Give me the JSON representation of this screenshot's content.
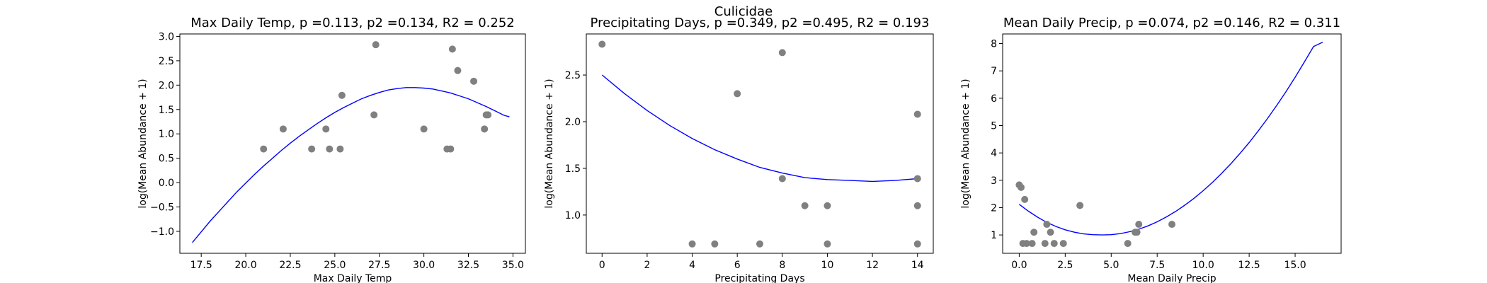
{
  "figure": {
    "suptitle": "Culicidae"
  },
  "colors": {
    "points": "#808080",
    "fit": "#0000ff",
    "axes": "#000000"
  },
  "chart_data": [
    {
      "type": "scatter",
      "title": "Max Daily Temp, p =0.113, p2 =0.134, R2 = 0.252",
      "xlabel": "Max Daily Temp",
      "ylabel": "log(Mean Abundance + 1)",
      "xlim": [
        16.3,
        35.7
      ],
      "ylim": [
        -1.45,
        3.05
      ],
      "xticks": [
        17.5,
        20.0,
        22.5,
        25.0,
        27.5,
        30.0,
        32.5,
        35.0
      ],
      "xtick_labels": [
        "17.5",
        "20.0",
        "22.5",
        "25.0",
        "27.5",
        "30.0",
        "32.5",
        "35.0"
      ],
      "yticks": [
        -1.0,
        -0.5,
        0.0,
        0.5,
        1.0,
        1.5,
        2.0,
        2.5,
        3.0
      ],
      "ytick_labels": [
        "−1.0",
        "−0.5",
        "0.0",
        "0.5",
        "1.0",
        "1.5",
        "2.0",
        "2.5",
        "3.0"
      ],
      "points": {
        "x": [
          21.0,
          22.1,
          23.7,
          24.5,
          24.7,
          25.3,
          25.4,
          27.2,
          27.3,
          30.0,
          31.3,
          31.5,
          31.6,
          31.9,
          32.8,
          33.4,
          33.5,
          33.6
        ],
        "y": [
          0.69,
          1.1,
          0.69,
          1.1,
          0.69,
          0.69,
          1.79,
          1.39,
          2.83,
          1.1,
          0.69,
          0.69,
          2.74,
          2.3,
          2.08,
          1.1,
          1.39,
          1.39
        ]
      },
      "fit": {
        "x": [
          17.0,
          17.5,
          18.0,
          18.5,
          19.0,
          19.5,
          20.0,
          20.5,
          21.0,
          21.5,
          22.0,
          22.5,
          23.0,
          23.5,
          24.0,
          24.5,
          25.0,
          25.5,
          26.0,
          26.5,
          27.0,
          27.5,
          28.0,
          28.5,
          29.0,
          29.5,
          30.0,
          30.5,
          31.0,
          31.5,
          32.0,
          32.5,
          33.0,
          33.5,
          34.0,
          34.5,
          34.8
        ],
        "y": [
          -1.23,
          -1.01,
          -0.79,
          -0.59,
          -0.39,
          -0.19,
          -0.01,
          0.17,
          0.34,
          0.5,
          0.66,
          0.81,
          0.95,
          1.08,
          1.21,
          1.33,
          1.44,
          1.54,
          1.63,
          1.72,
          1.79,
          1.85,
          1.9,
          1.93,
          1.95,
          1.95,
          1.94,
          1.92,
          1.88,
          1.84,
          1.78,
          1.72,
          1.64,
          1.56,
          1.47,
          1.38,
          1.35
        ]
      }
    },
    {
      "type": "scatter",
      "title": "Precipitating Days, p =0.349, p2 =0.495, R2 = 0.193",
      "xlabel": "Precipitating Days",
      "ylabel": "log(Mean Abundance + 1)",
      "xlim": [
        -0.7,
        14.7
      ],
      "ylim": [
        0.59,
        2.94
      ],
      "xticks": [
        0,
        2,
        4,
        6,
        8,
        10,
        12,
        14
      ],
      "xtick_labels": [
        "0",
        "2",
        "4",
        "6",
        "8",
        "10",
        "12",
        "14"
      ],
      "yticks": [
        1.0,
        1.5,
        2.0,
        2.5
      ],
      "ytick_labels": [
        "1.0",
        "1.5",
        "2.0",
        "2.5"
      ],
      "points": {
        "x": [
          0,
          4,
          5,
          6,
          7,
          8,
          8,
          9,
          10,
          10,
          14,
          14,
          14,
          14
        ],
        "y": [
          2.83,
          0.69,
          0.69,
          2.3,
          0.69,
          2.74,
          1.39,
          1.1,
          1.1,
          0.69,
          2.08,
          1.39,
          1.1,
          0.69
        ]
      },
      "fit": {
        "x": [
          0,
          1,
          2,
          3,
          4,
          5,
          6,
          7,
          8,
          9,
          10,
          11,
          12,
          13,
          14
        ],
        "y": [
          2.5,
          2.3,
          2.12,
          1.96,
          1.82,
          1.7,
          1.6,
          1.51,
          1.45,
          1.4,
          1.38,
          1.37,
          1.36,
          1.37,
          1.39
        ]
      }
    },
    {
      "type": "scatter",
      "title": "Mean Daily Precip, p =0.074, p2 =0.146, R2 = 0.311",
      "xlabel": "Mean Daily Precip",
      "ylabel": "log(Mean Abundance + 1)",
      "xlim": [
        -0.9,
        17.5
      ],
      "ylim": [
        0.33,
        8.35
      ],
      "xticks": [
        0.0,
        2.5,
        5.0,
        7.5,
        10.0,
        12.5,
        15.0
      ],
      "xtick_labels": [
        "0.0",
        "2.5",
        "5.0",
        "7.5",
        "10.0",
        "12.5",
        "15.0"
      ],
      "yticks": [
        1,
        2,
        3,
        4,
        5,
        6,
        7,
        8
      ],
      "ytick_labels": [
        "1",
        "2",
        "3",
        "4",
        "5",
        "6",
        "7",
        "8"
      ],
      "points": {
        "x": [
          0.0,
          0.1,
          0.2,
          0.3,
          0.4,
          0.7,
          0.8,
          1.4,
          1.5,
          1.7,
          1.9,
          2.4,
          3.3,
          5.9,
          6.3,
          6.4,
          6.5,
          8.3
        ],
        "y": [
          2.83,
          2.74,
          0.69,
          2.3,
          0.69,
          0.69,
          1.1,
          0.69,
          1.39,
          1.1,
          0.69,
          0.69,
          2.08,
          0.69,
          1.1,
          1.1,
          1.39,
          1.39
        ]
      },
      "fit": {
        "x": [
          0.0,
          0.5,
          1.0,
          1.5,
          2.0,
          2.5,
          3.0,
          3.5,
          4.0,
          4.5,
          5.0,
          5.5,
          6.0,
          6.5,
          7.0,
          7.5,
          8.0,
          8.5,
          9.0,
          9.5,
          10.0,
          10.5,
          11.0,
          11.5,
          12.0,
          12.5,
          13.0,
          13.5,
          14.0,
          14.5,
          15.0,
          15.5,
          16.0,
          16.5
        ],
        "y": [
          2.12,
          1.87,
          1.65,
          1.46,
          1.31,
          1.19,
          1.1,
          1.04,
          1.01,
          1.0,
          1.01,
          1.05,
          1.12,
          1.21,
          1.33,
          1.48,
          1.66,
          1.86,
          2.09,
          2.34,
          2.62,
          2.92,
          3.25,
          3.6,
          3.98,
          4.38,
          4.81,
          5.26,
          5.74,
          6.24,
          6.77,
          7.32,
          7.89,
          8.05
        ]
      }
    }
  ]
}
